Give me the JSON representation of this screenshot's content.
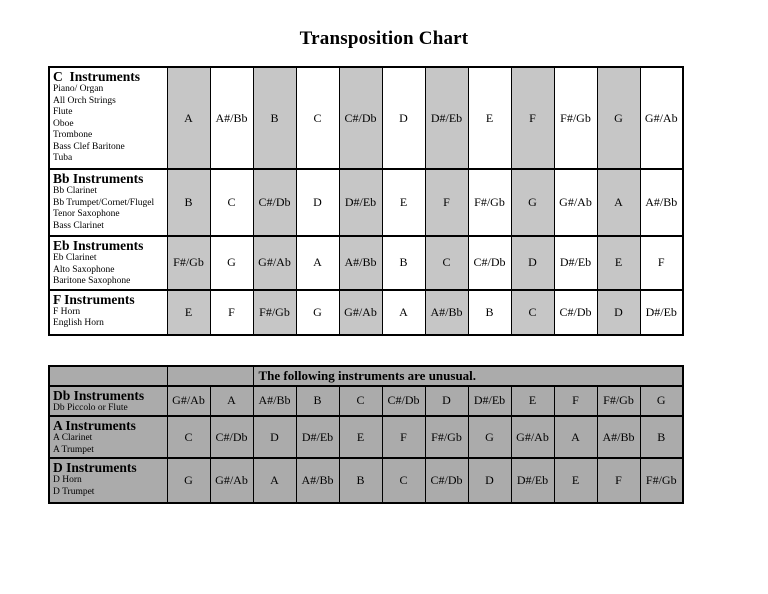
{
  "title": "Transposition Chart",
  "colors": {
    "shade_light": "#c6c6c6",
    "shade_dark": "#ababab",
    "border": "#000000",
    "background": "#ffffff"
  },
  "table1": {
    "rows": [
      {
        "header": "C  Instruments",
        "instruments": [
          "Piano/ Organ",
          "All Orch Strings",
          "Flute",
          "Oboe",
          "Trombone",
          "Bass Clef Baritone",
          "Tuba"
        ],
        "notes": [
          "A",
          "A#/Bb",
          "B",
          "C",
          "C#/Db",
          "D",
          "D#/Eb",
          "E",
          "F",
          "F#/Gb",
          "G",
          "G#/Ab"
        ]
      },
      {
        "header": "Bb Instruments",
        "instruments": [
          "Bb Clarinet",
          "Bb Trumpet/Cornet/Flugel",
          "Tenor Saxophone",
          "Bass Clarinet"
        ],
        "notes": [
          "B",
          "C",
          "C#/Db",
          "D",
          "D#/Eb",
          "E",
          "F",
          "F#/Gb",
          "G",
          "G#/Ab",
          "A",
          "A#/Bb"
        ]
      },
      {
        "header": "Eb Instruments",
        "instruments": [
          "Eb Clarinet",
          "Alto Saxophone",
          "Baritone Saxophone"
        ],
        "notes": [
          "F#/Gb",
          "G",
          "G#/Ab",
          "A",
          "A#/Bb",
          "B",
          "C",
          "C#/Db",
          "D",
          "D#/Eb",
          "E",
          "F"
        ]
      },
      {
        "header": "F Instruments",
        "instruments": [
          "F Horn",
          "English Horn"
        ],
        "notes": [
          "E",
          "F",
          "F#/Gb",
          "G",
          "G#/Ab",
          "A",
          "A#/Bb",
          "B",
          "C",
          "C#/Db",
          "D",
          "D#/Eb"
        ]
      }
    ]
  },
  "table2": {
    "banner": "The following instruments are unusual.",
    "rows": [
      {
        "header": "Db Instruments",
        "instruments": [
          "Db Piccolo or Flute"
        ],
        "notes": [
          "G#/Ab",
          "A",
          "A#/Bb",
          "B",
          "C",
          "C#/Db",
          "D",
          "D#/Eb",
          "E",
          "F",
          "F#/Gb",
          "G"
        ]
      },
      {
        "header": "A Instruments",
        "instruments": [
          "A Clarinet",
          "A Trumpet"
        ],
        "notes": [
          "C",
          "C#/Db",
          "D",
          "D#/Eb",
          "E",
          "F",
          "F#/Gb",
          "G",
          "G#/Ab",
          "A",
          "A#/Bb",
          "B"
        ]
      },
      {
        "header": "D Instruments",
        "instruments": [
          "D Horn",
          "D Trumpet"
        ],
        "notes": [
          "G",
          "G#/Ab",
          "A",
          "A#/Bb",
          "B",
          "C",
          "C#/Db",
          "D",
          "D#/Eb",
          "E",
          "F",
          "F#/Gb"
        ]
      }
    ]
  }
}
